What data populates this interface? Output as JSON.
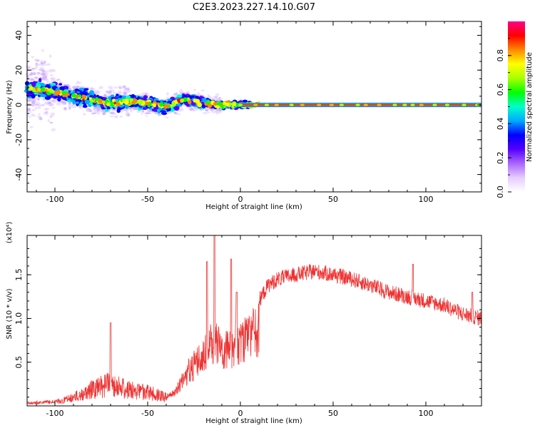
{
  "title": "C2E3.2023.227.14.10.G07",
  "chart_data": [
    {
      "type": "heatmap",
      "xlabel": "Height of straight line (km)",
      "ylabel": "Frequency (Hz)",
      "xlim": [
        -115,
        130
      ],
      "ylim": [
        -50,
        48
      ],
      "xticks": [
        -100,
        -50,
        0,
        50,
        100
      ],
      "yticks": [
        -40,
        -20,
        0,
        20,
        40
      ],
      "colorbar": {
        "label": "Normalized spectral amplitude",
        "range": [
          0,
          1
        ],
        "ticks": [
          0.0,
          0.2,
          0.4,
          0.6,
          0.8
        ],
        "colors": [
          "#ffffff",
          "#e6ccff",
          "#aa66ff",
          "#5500ff",
          "#0000ff",
          "#00aaff",
          "#00ffcc",
          "#00ff00",
          "#aaff00",
          "#ffff00",
          "#ff8800",
          "#ff0000",
          "#ff0088"
        ]
      },
      "ridge": {
        "description": "frequency centroid",
        "points": [
          [
            -112,
            9
          ],
          [
            -100,
            8
          ],
          [
            -90,
            5
          ],
          [
            -80,
            3
          ],
          [
            -70,
            1
          ],
          [
            -60,
            2
          ],
          [
            -50,
            1
          ],
          [
            -40,
            -1
          ],
          [
            -30,
            3
          ],
          [
            -20,
            1
          ],
          [
            -10,
            0
          ],
          [
            0,
            0
          ],
          [
            5,
            0
          ],
          [
            130,
            0
          ]
        ],
        "line_y": 0,
        "line_from_x": 0
      }
    },
    {
      "type": "line",
      "xlabel": "Height of straight line (km)",
      "ylabel": "SNR (10 * v/v)",
      "scale_label": "(x10⁴)",
      "xlim": [
        -115,
        130
      ],
      "ylim": [
        0,
        1.95
      ],
      "xticks": [
        -100,
        -50,
        0,
        50,
        100
      ],
      "yticks": [
        0.5,
        1.0,
        1.5
      ],
      "series": [
        {
          "color": "#ee3333",
          "envelope": [
            [
              -115,
              0.05
            ],
            [
              -100,
              0.07
            ],
            [
              -90,
              0.15
            ],
            [
              -80,
              0.3
            ],
            [
              -70,
              0.4
            ],
            [
              -60,
              0.3
            ],
            [
              -50,
              0.25
            ],
            [
              -40,
              0.15
            ],
            [
              -35,
              0.2
            ],
            [
              -28,
              0.55
            ],
            [
              -20,
              0.8
            ],
            [
              -15,
              1.0
            ],
            [
              -10,
              0.9
            ],
            [
              -5,
              0.95
            ],
            [
              0,
              1.0
            ],
            [
              5,
              1.1
            ],
            [
              10,
              1.2
            ],
            [
              15,
              1.38
            ],
            [
              20,
              1.45
            ],
            [
              30,
              1.5
            ],
            [
              40,
              1.54
            ],
            [
              50,
              1.5
            ],
            [
              60,
              1.45
            ],
            [
              70,
              1.38
            ],
            [
              80,
              1.3
            ],
            [
              90,
              1.25
            ],
            [
              100,
              1.2
            ],
            [
              110,
              1.15
            ],
            [
              120,
              1.05
            ],
            [
              130,
              1.0
            ]
          ],
          "spikes": [
            [
              -70,
              0.95
            ],
            [
              -14,
              1.95
            ],
            [
              -18,
              1.65
            ],
            [
              -5,
              1.68
            ],
            [
              -2,
              1.3
            ],
            [
              93,
              1.62
            ],
            [
              125,
              1.3
            ]
          ]
        }
      ]
    }
  ]
}
